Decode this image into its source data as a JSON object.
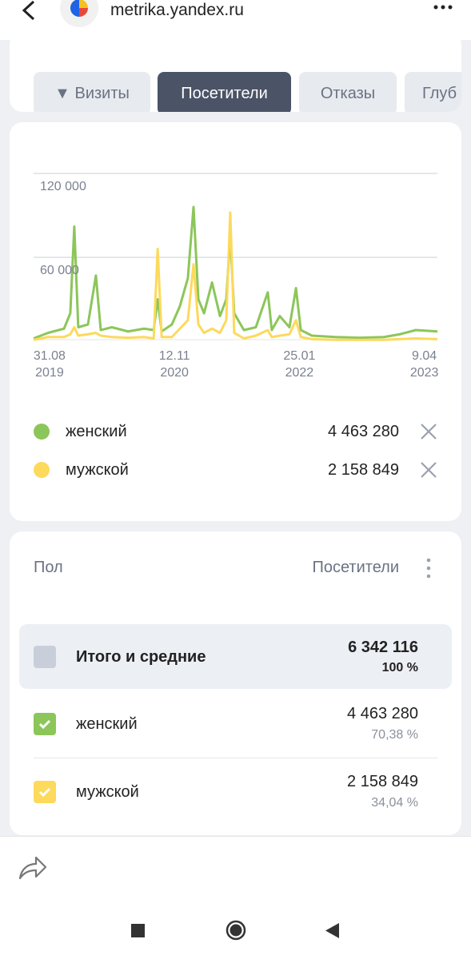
{
  "header": {
    "url": "metrika.yandex.ru"
  },
  "tabs": {
    "items": [
      "Визиты",
      "Посетители",
      "Отказы",
      "Глуб"
    ],
    "active": 1
  },
  "chart_data": {
    "type": "line",
    "x": [
      "2019-07-06",
      "2019-08-26",
      "2019-10-21",
      "2019-11-12",
      "2019-11-26",
      "2019-12-10",
      "2020-01-13",
      "2020-02-10",
      "2020-02-27",
      "2020-04-06",
      "2020-06-02",
      "2020-07-28",
      "2020-08-31",
      "2020-09-14",
      "2020-09-28",
      "2020-11-03",
      "2020-12-01",
      "2020-12-29",
      "2021-01-18",
      "2021-02-04",
      "2021-02-24",
      "2021-03-24",
      "2021-04-21",
      "2021-05-13",
      "2021-05-27",
      "2021-06-10",
      "2021-07-14",
      "2021-08-25",
      "2021-10-06",
      "2021-10-20",
      "2021-11-17",
      "2021-12-21",
      "2022-01-13",
      "2022-01-30",
      "2022-03-10",
      "2022-06-02",
      "2022-08-25",
      "2022-11-18",
      "2023-01-13",
      "2023-03-10",
      "2023-05-25"
    ],
    "series": [
      {
        "name": "женский",
        "color": "#8cc65a",
        "total": "4 463 280",
        "values": [
          2000,
          6000,
          9000,
          20000,
          82000,
          10000,
          12000,
          47000,
          8000,
          10000,
          7000,
          9000,
          8000,
          30000,
          7000,
          12000,
          25000,
          45000,
          96000,
          30000,
          20000,
          42000,
          18000,
          30000,
          75000,
          20000,
          8000,
          10000,
          35000,
          8000,
          18000,
          10000,
          38000,
          8000,
          4000,
          3000,
          2500,
          3000,
          5000,
          8000,
          7000
        ]
      },
      {
        "name": "мужской",
        "color": "#fdd95c",
        "total": "2 158 849",
        "values": [
          1000,
          3000,
          3000,
          5000,
          10000,
          4000,
          5000,
          6000,
          4000,
          3000,
          2500,
          3000,
          2000,
          66000,
          3000,
          3000,
          9000,
          15000,
          55000,
          12000,
          6000,
          9000,
          6000,
          15000,
          92000,
          6000,
          2000,
          4000,
          8000,
          3000,
          4000,
          5000,
          15000,
          3000,
          1500,
          1000,
          1000,
          1000,
          1500,
          2000,
          1500
        ]
      }
    ],
    "xlim": [
      "2019-07-06",
      "2023-05-25"
    ],
    "xticks": [
      {
        "value": "2019-08-31",
        "label": "31.08\n2019"
      },
      {
        "value": "2020-11-12",
        "label": "12.11\n2020"
      },
      {
        "value": "2022-01-25",
        "label": "25.01\n2022"
      },
      {
        "value": "2023-04-09",
        "label": "9.04\n2023"
      }
    ],
    "ylim": [
      0,
      120000
    ],
    "yticks": [
      {
        "value": 60000,
        "label": "60 000"
      },
      {
        "value": 120000,
        "label": "120 000"
      }
    ],
    "grid": true
  },
  "table": {
    "columns": [
      "Пол",
      "Посетители"
    ],
    "total": {
      "label": "Итого и средние",
      "value": "6 342 116",
      "share": "100 %"
    },
    "rows": [
      {
        "label": "женский",
        "value": "4 463 280",
        "share": "70,38 %"
      },
      {
        "label": "мужской",
        "value": "2 158 849",
        "share": "34,04 %"
      }
    ]
  }
}
